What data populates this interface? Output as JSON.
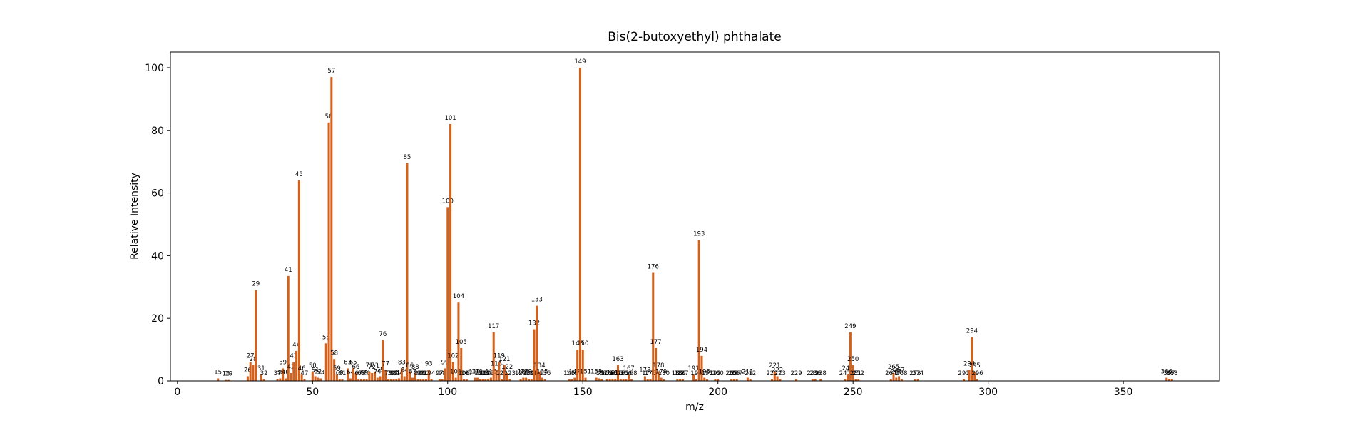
{
  "chart_data": {
    "type": "bar",
    "title": "Bis(2-butoxyethyl) phthalate",
    "x_label": "m/z",
    "y_label": "Relative Intensity",
    "color": "#d4601a",
    "x": [
      15,
      18,
      19,
      26,
      27,
      28,
      29,
      31,
      32,
      37,
      38,
      39,
      40,
      41,
      42,
      43,
      44,
      45,
      46,
      47,
      50,
      51,
      52,
      53,
      55,
      56,
      57,
      58,
      59,
      60,
      61,
      63,
      64,
      65,
      66,
      67,
      68,
      69,
      70,
      71,
      72,
      73,
      74,
      75,
      76,
      77,
      78,
      79,
      80,
      81,
      82,
      83,
      84,
      85,
      86,
      87,
      88,
      89,
      90,
      91,
      92,
      93,
      94,
      97,
      98,
      99,
      100,
      101,
      102,
      103,
      104,
      105,
      106,
      107,
      110,
      111,
      112,
      113,
      114,
      115,
      116,
      117,
      118,
      119,
      120,
      121,
      122,
      123,
      127,
      128,
      129,
      130,
      131,
      132,
      133,
      134,
      135,
      136,
      145,
      146,
      147,
      148,
      149,
      150,
      151,
      155,
      156,
      157,
      159,
      160,
      161,
      162,
      163,
      164,
      165,
      166,
      167,
      168,
      173,
      174,
      175,
      176,
      177,
      178,
      179,
      180,
      185,
      186,
      187,
      191,
      192,
      193,
      194,
      195,
      196,
      199,
      200,
      205,
      206,
      207,
      211,
      212,
      220,
      221,
      222,
      223,
      229,
      235,
      236,
      238,
      247,
      248,
      249,
      250,
      251,
      252,
      264,
      265,
      266,
      267,
      268,
      273,
      274,
      291,
      293,
      294,
      295,
      296,
      366,
      367,
      368
    ],
    "values": [
      0.8,
      0.3,
      0.3,
      1.5,
      6,
      5,
      29,
      2,
      0.5,
      0.5,
      0.8,
      4,
      0.8,
      33.5,
      2.5,
      6,
      9.6,
      64,
      2,
      0.5,
      3,
      1.5,
      1,
      0.8,
      12,
      82.5,
      97,
      7,
      2,
      0.6,
      0.5,
      4,
      0.8,
      4,
      2.5,
      0.5,
      0.5,
      0.6,
      0.5,
      3,
      2.5,
      3,
      1,
      1.5,
      13,
      3.5,
      0.5,
      0.5,
      0.5,
      0.5,
      0.8,
      4,
      1.5,
      69.5,
      3,
      1,
      2.5,
      0.5,
      0.5,
      0.5,
      0.5,
      3.5,
      0.5,
      0.5,
      0.5,
      4,
      55.5,
      82,
      6,
      1,
      25,
      10.5,
      0.5,
      0.5,
      1,
      1,
      0.5,
      0.5,
      0.5,
      0.5,
      1,
      15.5,
      3.5,
      6,
      0.5,
      5,
      2.5,
      0.5,
      0.5,
      1,
      1,
      0.5,
      0.5,
      16.5,
      24,
      3,
      1,
      0.5,
      0.5,
      0.5,
      1,
      10,
      100,
      10,
      1,
      1,
      0.8,
      0.5,
      0.5,
      0.5,
      0.6,
      0.5,
      5,
      0.5,
      0.5,
      0.5,
      2,
      0.5,
      1.5,
      0.5,
      0.5,
      34.5,
      10.5,
      3,
      1,
      0.5,
      0.5,
      0.5,
      0.5,
      2,
      0.5,
      45,
      8,
      1,
      0.5,
      0.5,
      0.5,
      0.5,
      0.5,
      0.5,
      1,
      0.5,
      0.5,
      3,
      1.5,
      0.5,
      0.5,
      0.5,
      0.5,
      0.5,
      0.5,
      2,
      15.5,
      5,
      0.5,
      0.5,
      0.5,
      2.5,
      1,
      1.5,
      0.5,
      0.5,
      0.5,
      0.5,
      3.5,
      14,
      3,
      0.5,
      1,
      0.5,
      0.5
    ],
    "xlim": [
      -2.6,
      385.6
    ],
    "ylim": [
      0,
      105
    ],
    "xticks": [
      0,
      50,
      100,
      150,
      200,
      250,
      300,
      350
    ],
    "yticks": [
      0,
      20,
      40,
      60,
      80,
      100
    ]
  }
}
